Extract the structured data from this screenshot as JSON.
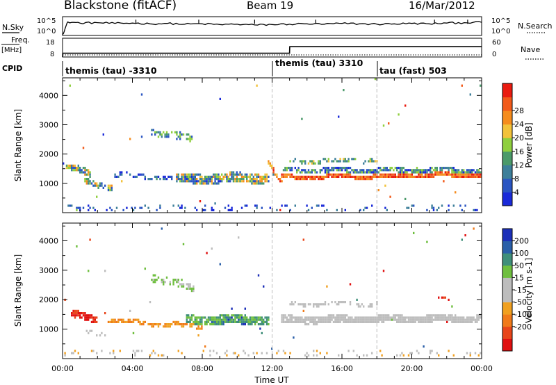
{
  "header": {
    "station": "Blackstone (fitACF)",
    "beam": "Beam 19",
    "date": "16/Mar/2012"
  },
  "left_labels": {
    "nsky": "N.Sky",
    "freq": "Freq.",
    "mhz": "[MHz]",
    "cpid": "CPID"
  },
  "right_labels": {
    "nsearch": "N.Search",
    "nave": "Nave"
  },
  "colors": {
    "power_scale": [
      "#1a2ad9",
      "#2a55c2",
      "#3d7f9a",
      "#4b9a6a",
      "#8fcf3e",
      "#f2c23a",
      "#f58c1d",
      "#f25a1a",
      "#ea1b10"
    ],
    "velocity_scale": [
      "#1c2fb8",
      "#2a5fa8",
      "#3f8f7a",
      "#6fbf3f",
      "#bdbdbd",
      "#bdbdbd",
      "#f0a020",
      "#f07a1a",
      "#e8451a",
      "#e01010"
    ]
  },
  "chart_data": [
    {
      "type": "line",
      "name": "noise",
      "left_ticks": [
        "10^5",
        "10^0"
      ],
      "right_ticks": [
        "10^5",
        "10^0"
      ],
      "x": [
        0,
        0.3,
        1,
        2,
        3,
        4,
        5,
        6,
        7,
        8,
        9,
        10,
        11,
        12,
        13,
        14,
        15,
        16,
        17,
        18,
        19,
        20,
        21,
        22,
        23,
        24
      ],
      "series": [
        {
          "values": [
            0.2,
            3.6,
            3.3,
            3.4,
            3.2,
            3.3,
            3.1,
            3.2,
            3.0,
            3.1,
            2.9,
            3.0,
            2.8,
            2.9,
            3.0,
            3.1,
            3.0,
            3.2,
            3.1,
            3.0,
            3.1,
            3.2,
            3.1,
            3.3,
            3.4,
            3.5
          ]
        }
      ]
    },
    {
      "type": "line",
      "name": "frequency",
      "left_ticks": [
        "18",
        "8"
      ],
      "right_ticks": [
        "60",
        "0"
      ],
      "x": [
        0,
        0.01,
        13.0,
        13.01,
        24
      ],
      "series": [
        {
          "values": [
            8,
            10,
            10,
            13.5,
            13.5
          ]
        }
      ]
    },
    {
      "type": "table",
      "name": "cpid",
      "segments": [
        {
          "start": 0,
          "label": "themis (tau) -3310"
        },
        {
          "start": 12,
          "label": "themis (tau) 3310"
        },
        {
          "start": 18,
          "label": "tau (fast) 503"
        }
      ]
    },
    {
      "type": "heatmap",
      "name": "power",
      "ylabel": "Slant Range [km]",
      "ylim": [
        0,
        4600
      ],
      "y_ticks": [
        1000,
        2000,
        3000,
        4000
      ],
      "colorbar_label": "Power [dB]",
      "colorbar_ticks": [
        "4",
        "8",
        "12",
        "16",
        "20",
        "24",
        "28"
      ],
      "bands": [
        {
          "t0": 0.1,
          "t1": 1.6,
          "c0": 1550,
          "c1": 1350,
          "w": 260,
          "d": 0.75,
          "col": [
            1,
            6
          ]
        },
        {
          "t0": 1.2,
          "t1": 2.8,
          "c0": 1100,
          "c1": 850,
          "w": 200,
          "d": 0.75,
          "col": [
            1,
            6
          ]
        },
        {
          "t0": 2.8,
          "t1": 9.0,
          "c0": 1300,
          "c1": 1100,
          "w": 160,
          "d": 0.45,
          "col": [
            0,
            3
          ]
        },
        {
          "t0": 5.0,
          "t1": 7.5,
          "c0": 2800,
          "c1": 2500,
          "w": 260,
          "d": 0.5,
          "col": [
            1,
            4
          ]
        },
        {
          "t0": 6.5,
          "t1": 11.8,
          "c0": 1150,
          "c1": 1200,
          "w": 340,
          "d": 0.8,
          "col": [
            1,
            6
          ]
        },
        {
          "t0": 11.7,
          "t1": 12.6,
          "c0": 1800,
          "c1": 900,
          "w": 160,
          "d": 0.85,
          "col": [
            5,
            8
          ]
        },
        {
          "t0": 12.5,
          "t1": 24,
          "c0": 1200,
          "c1": 1300,
          "w": 150,
          "d": 0.95,
          "col": [
            6,
            8
          ]
        },
        {
          "t0": 12.6,
          "t1": 24,
          "c0": 1450,
          "c1": 1450,
          "w": 180,
          "d": 0.75,
          "col": [
            0,
            4
          ]
        },
        {
          "t0": 13,
          "t1": 18,
          "c0": 1750,
          "c1": 1800,
          "w": 150,
          "d": 0.55,
          "col": [
            2,
            5
          ]
        }
      ]
    },
    {
      "type": "heatmap",
      "name": "velocity",
      "ylabel": "Slant Range [km]",
      "ylim": [
        0,
        4600
      ],
      "y_ticks": [
        1000,
        2000,
        3000,
        4000
      ],
      "colorbar_label": "Velocity [m s-1]",
      "colorbar_ticks": [
        "200",
        "100",
        "50",
        "15",
        "-15",
        "-50",
        "-100",
        "-200"
      ],
      "xlabel": "Time UT",
      "x_ticks": [
        "00:00",
        "04:00",
        "08:00",
        "12:00",
        "16:00",
        "20:00",
        "00:00"
      ],
      "xlim": [
        0,
        24
      ],
      "bands": [
        {
          "t0": 0.4,
          "t1": 2.0,
          "c0": 1500,
          "c1": 1300,
          "w": 260,
          "d": 0.8,
          "col": [
            8,
            9
          ]
        },
        {
          "t0": 1.2,
          "t1": 2.5,
          "c0": 900,
          "c1": 800,
          "w": 140,
          "d": 0.6,
          "col": [
            4,
            4
          ]
        },
        {
          "t0": 2.5,
          "t1": 8.0,
          "c0": 1300,
          "c1": 1050,
          "w": 150,
          "d": 0.7,
          "col": [
            6,
            7
          ]
        },
        {
          "t0": 5.0,
          "t1": 7.5,
          "c0": 2800,
          "c1": 2400,
          "w": 280,
          "d": 0.55,
          "col": [
            3,
            4
          ]
        },
        {
          "t0": 7.0,
          "t1": 11.8,
          "c0": 1300,
          "c1": 1300,
          "w": 320,
          "d": 0.8,
          "col": [
            2,
            3
          ]
        },
        {
          "t0": 8.5,
          "t1": 10.5,
          "c0": 1250,
          "c1": 1250,
          "w": 240,
          "d": 0.7,
          "col": [
            0,
            1
          ]
        },
        {
          "t0": 12.5,
          "t1": 24,
          "c0": 1300,
          "c1": 1350,
          "w": 260,
          "d": 0.92,
          "col": [
            4,
            5
          ]
        },
        {
          "t0": 13,
          "t1": 18,
          "c0": 1850,
          "c1": 1850,
          "w": 140,
          "d": 0.5,
          "col": [
            4,
            5
          ]
        },
        {
          "t0": 21.5,
          "t1": 22.3,
          "c0": 2000,
          "c1": 2000,
          "w": 80,
          "d": 0.6,
          "col": [
            8,
            9
          ]
        }
      ]
    }
  ]
}
